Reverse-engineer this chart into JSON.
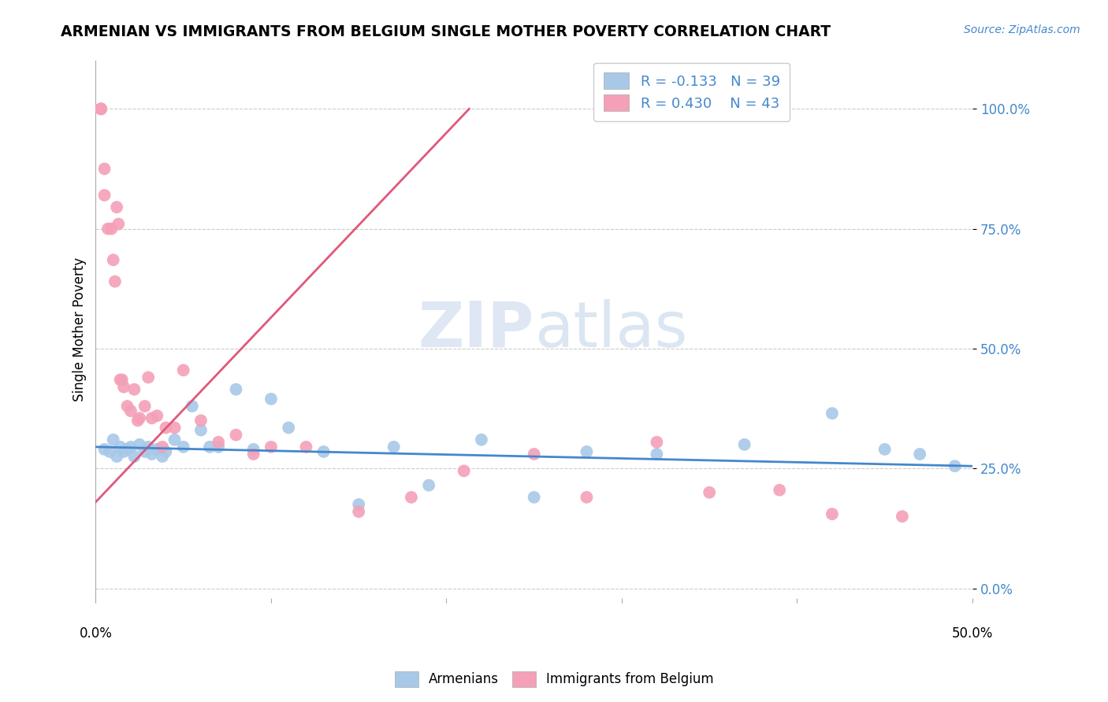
{
  "title": "ARMENIAN VS IMMIGRANTS FROM BELGIUM SINGLE MOTHER POVERTY CORRELATION CHART",
  "source": "Source: ZipAtlas.com",
  "ylabel": "Single Mother Poverty",
  "ytick_labels": [
    "0.0%",
    "25.0%",
    "50.0%",
    "75.0%",
    "100.0%"
  ],
  "ytick_values": [
    0.0,
    0.25,
    0.5,
    0.75,
    1.0
  ],
  "xlim": [
    0.0,
    0.5
  ],
  "ylim": [
    -0.02,
    1.1
  ],
  "legend1_label": "R = -0.133   N = 39",
  "legend2_label": "R = 0.430    N = 43",
  "armenian_color": "#a8c8e8",
  "belgium_color": "#f4a0b8",
  "armenian_line_color": "#4488cc",
  "belgium_line_color": "#e05878",
  "grid_color": "#cccccc",
  "armenian_x": [
    0.005,
    0.008,
    0.01,
    0.012,
    0.014,
    0.016,
    0.018,
    0.02,
    0.022,
    0.025,
    0.028,
    0.03,
    0.032,
    0.035,
    0.038,
    0.04,
    0.045,
    0.05,
    0.055,
    0.06,
    0.065,
    0.07,
    0.08,
    0.09,
    0.1,
    0.11,
    0.13,
    0.15,
    0.17,
    0.19,
    0.22,
    0.25,
    0.28,
    0.32,
    0.37,
    0.42,
    0.45,
    0.47,
    0.49
  ],
  "armenian_y": [
    0.29,
    0.285,
    0.31,
    0.275,
    0.295,
    0.285,
    0.29,
    0.295,
    0.275,
    0.3,
    0.285,
    0.295,
    0.28,
    0.29,
    0.275,
    0.285,
    0.31,
    0.295,
    0.38,
    0.33,
    0.295,
    0.295,
    0.415,
    0.29,
    0.395,
    0.335,
    0.285,
    0.175,
    0.295,
    0.215,
    0.31,
    0.19,
    0.285,
    0.28,
    0.3,
    0.365,
    0.29,
    0.28,
    0.255
  ],
  "belgium_x": [
    0.003,
    0.003,
    0.003,
    0.005,
    0.005,
    0.007,
    0.009,
    0.01,
    0.011,
    0.012,
    0.013,
    0.014,
    0.015,
    0.016,
    0.018,
    0.02,
    0.022,
    0.024,
    0.025,
    0.028,
    0.03,
    0.032,
    0.035,
    0.038,
    0.04,
    0.045,
    0.05,
    0.06,
    0.07,
    0.08,
    0.09,
    0.1,
    0.12,
    0.15,
    0.18,
    0.21,
    0.25,
    0.28,
    0.32,
    0.35,
    0.39,
    0.42,
    0.46
  ],
  "belgium_y": [
    1.0,
    1.0,
    1.0,
    0.875,
    0.82,
    0.75,
    0.75,
    0.685,
    0.64,
    0.795,
    0.76,
    0.435,
    0.435,
    0.42,
    0.38,
    0.37,
    0.415,
    0.35,
    0.355,
    0.38,
    0.44,
    0.355,
    0.36,
    0.295,
    0.335,
    0.335,
    0.455,
    0.35,
    0.305,
    0.32,
    0.28,
    0.295,
    0.295,
    0.16,
    0.19,
    0.245,
    0.28,
    0.19,
    0.305,
    0.2,
    0.205,
    0.155,
    0.15
  ],
  "bel_line_x": [
    0.0,
    0.2
  ],
  "bel_line_y": [
    0.18,
    0.95
  ],
  "arm_line_x": [
    0.0,
    0.5
  ],
  "arm_line_y": [
    0.295,
    0.255
  ]
}
